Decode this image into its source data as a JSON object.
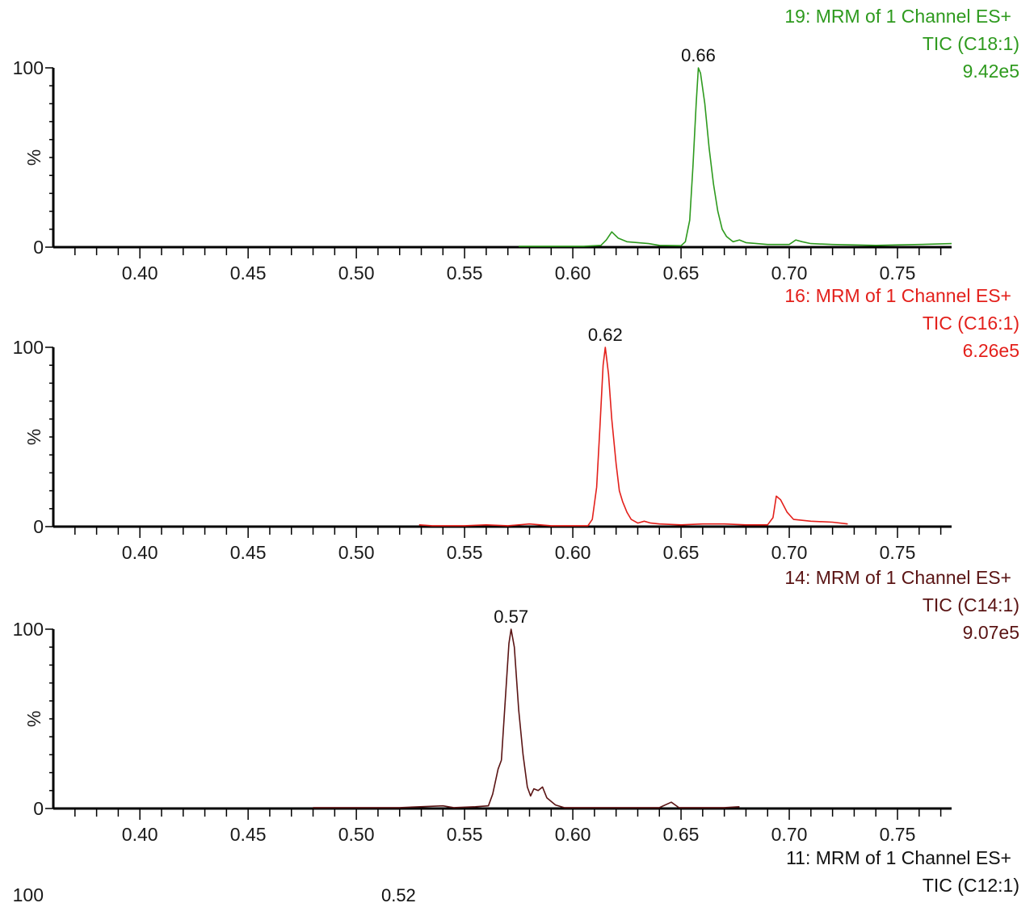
{
  "chart_data": [
    {
      "type": "line",
      "title": "19: MRM of 1 Channel ES+",
      "subtitle": "TIC (C18:1)",
      "intensity": "9.42e5",
      "color": "#2e9a1e",
      "ylabel": "%",
      "xlabel": "",
      "xlim": [
        0.36,
        0.775
      ],
      "ylim": [
        0,
        100
      ],
      "x_ticks": [
        "0.40",
        "0.45",
        "0.50",
        "0.55",
        "0.60",
        "0.65",
        "0.70",
        "0.75"
      ],
      "y_ticks": [
        "0",
        "100"
      ],
      "peak_label": "0.66",
      "peak_x": 0.658,
      "points": [
        [
          0.575,
          0.5
        ],
        [
          0.605,
          0.5
        ],
        [
          0.613,
          1
        ],
        [
          0.6155,
          4
        ],
        [
          0.618,
          8.5
        ],
        [
          0.621,
          5
        ],
        [
          0.625,
          3
        ],
        [
          0.63,
          2.5
        ],
        [
          0.635,
          2
        ],
        [
          0.64,
          1
        ],
        [
          0.65,
          0.8
        ],
        [
          0.652,
          3
        ],
        [
          0.654,
          15
        ],
        [
          0.6555,
          45
        ],
        [
          0.657,
          80
        ],
        [
          0.658,
          100
        ],
        [
          0.659,
          97
        ],
        [
          0.661,
          80
        ],
        [
          0.663,
          55
        ],
        [
          0.665,
          35
        ],
        [
          0.667,
          20
        ],
        [
          0.669,
          10
        ],
        [
          0.671,
          6
        ],
        [
          0.674,
          3
        ],
        [
          0.677,
          4
        ],
        [
          0.68,
          2.5
        ],
        [
          0.69,
          1.5
        ],
        [
          0.7,
          1.5
        ],
        [
          0.703,
          4
        ],
        [
          0.706,
          3
        ],
        [
          0.71,
          2
        ],
        [
          0.72,
          1.5
        ],
        [
          0.74,
          1
        ],
        [
          0.76,
          1.5
        ],
        [
          0.775,
          2
        ]
      ]
    },
    {
      "type": "line",
      "title": "16: MRM of 1 Channel ES+",
      "subtitle": "TIC (C16:1)",
      "intensity": "6.26e5",
      "color": "#e3201b",
      "ylabel": "%",
      "xlabel": "",
      "xlim": [
        0.36,
        0.775
      ],
      "ylim": [
        0,
        100
      ],
      "x_ticks": [
        "0.40",
        "0.45",
        "0.50",
        "0.55",
        "0.60",
        "0.65",
        "0.70",
        "0.75"
      ],
      "y_ticks": [
        "0",
        "100"
      ],
      "peak_label": "0.62",
      "peak_x": 0.615,
      "points": [
        [
          0.529,
          1
        ],
        [
          0.535,
          0.5
        ],
        [
          0.55,
          0.5
        ],
        [
          0.56,
          1
        ],
        [
          0.57,
          0.5
        ],
        [
          0.58,
          1.5
        ],
        [
          0.59,
          0.5
        ],
        [
          0.607,
          0.5
        ],
        [
          0.609,
          4
        ],
        [
          0.611,
          22
        ],
        [
          0.6125,
          55
        ],
        [
          0.614,
          90
        ],
        [
          0.615,
          100
        ],
        [
          0.6165,
          85
        ],
        [
          0.618,
          60
        ],
        [
          0.62,
          35
        ],
        [
          0.6215,
          20
        ],
        [
          0.623,
          14
        ],
        [
          0.625,
          8
        ],
        [
          0.627,
          4
        ],
        [
          0.63,
          2
        ],
        [
          0.633,
          3
        ],
        [
          0.636,
          2
        ],
        [
          0.64,
          1.5
        ],
        [
          0.65,
          1
        ],
        [
          0.66,
          1.5
        ],
        [
          0.67,
          1.5
        ],
        [
          0.68,
          1
        ],
        [
          0.69,
          1
        ],
        [
          0.6925,
          5
        ],
        [
          0.694,
          17
        ],
        [
          0.696,
          15
        ],
        [
          0.699,
          8
        ],
        [
          0.702,
          4
        ],
        [
          0.71,
          3
        ],
        [
          0.72,
          2.5
        ],
        [
          0.727,
          1.5
        ]
      ]
    },
    {
      "type": "line",
      "title": "14: MRM of 1 Channel ES+",
      "subtitle": "TIC (C14:1)",
      "intensity": "9.07e5",
      "color": "#5a1414",
      "ylabel": "%",
      "xlabel": "",
      "xlim": [
        0.36,
        0.775
      ],
      "ylim": [
        0,
        100
      ],
      "x_ticks": [
        "0.40",
        "0.45",
        "0.50",
        "0.55",
        "0.60",
        "0.65",
        "0.70",
        "0.75"
      ],
      "y_ticks": [
        "0",
        "100"
      ],
      "peak_label": "0.57",
      "peak_x": 0.5715,
      "points": [
        [
          0.48,
          0.5
        ],
        [
          0.52,
          0.5
        ],
        [
          0.54,
          1.5
        ],
        [
          0.545,
          0.5
        ],
        [
          0.555,
          1
        ],
        [
          0.561,
          1.5
        ],
        [
          0.563,
          8
        ],
        [
          0.5655,
          22
        ],
        [
          0.567,
          27
        ],
        [
          0.5685,
          55
        ],
        [
          0.5705,
          92
        ],
        [
          0.5715,
          100
        ],
        [
          0.573,
          90
        ],
        [
          0.575,
          55
        ],
        [
          0.577,
          30
        ],
        [
          0.579,
          12
        ],
        [
          0.5805,
          7
        ],
        [
          0.582,
          11
        ],
        [
          0.584,
          10
        ],
        [
          0.586,
          12
        ],
        [
          0.588,
          6
        ],
        [
          0.592,
          2
        ],
        [
          0.596,
          0.5
        ],
        [
          0.62,
          0.5
        ],
        [
          0.64,
          0.5
        ],
        [
          0.6455,
          3.5
        ],
        [
          0.649,
          0.5
        ],
        [
          0.67,
          0.5
        ],
        [
          0.677,
          1
        ]
      ]
    },
    {
      "type": "line",
      "title": "11: MRM of 1 Channel ES+",
      "subtitle": "TIC (C12:1)",
      "color": "#111111",
      "ylabel": "%",
      "xlim": [
        0.36,
        0.775
      ],
      "ylim": [
        0,
        100
      ],
      "y_ticks": [
        "100"
      ],
      "peak_label": "0.52",
      "peak_x": 0.5195,
      "points": []
    }
  ]
}
